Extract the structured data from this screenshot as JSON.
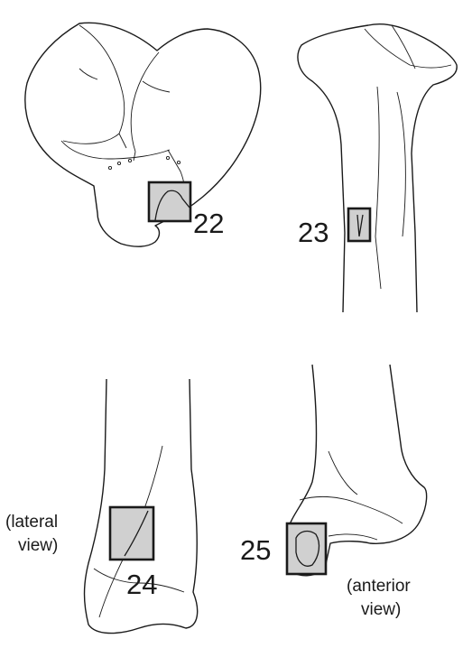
{
  "labels": {
    "l22": "22",
    "l23": "23",
    "l24": "24",
    "l25": "25"
  },
  "annotations": {
    "lateral_line1": "(lateral",
    "lateral_line2": "view)",
    "anterior_line1": "(anterior",
    "anterior_line2": "view)"
  },
  "colors": {
    "outline": "#1a1a1a",
    "region_fill": "#d0d0d0",
    "background": "#ffffff"
  }
}
